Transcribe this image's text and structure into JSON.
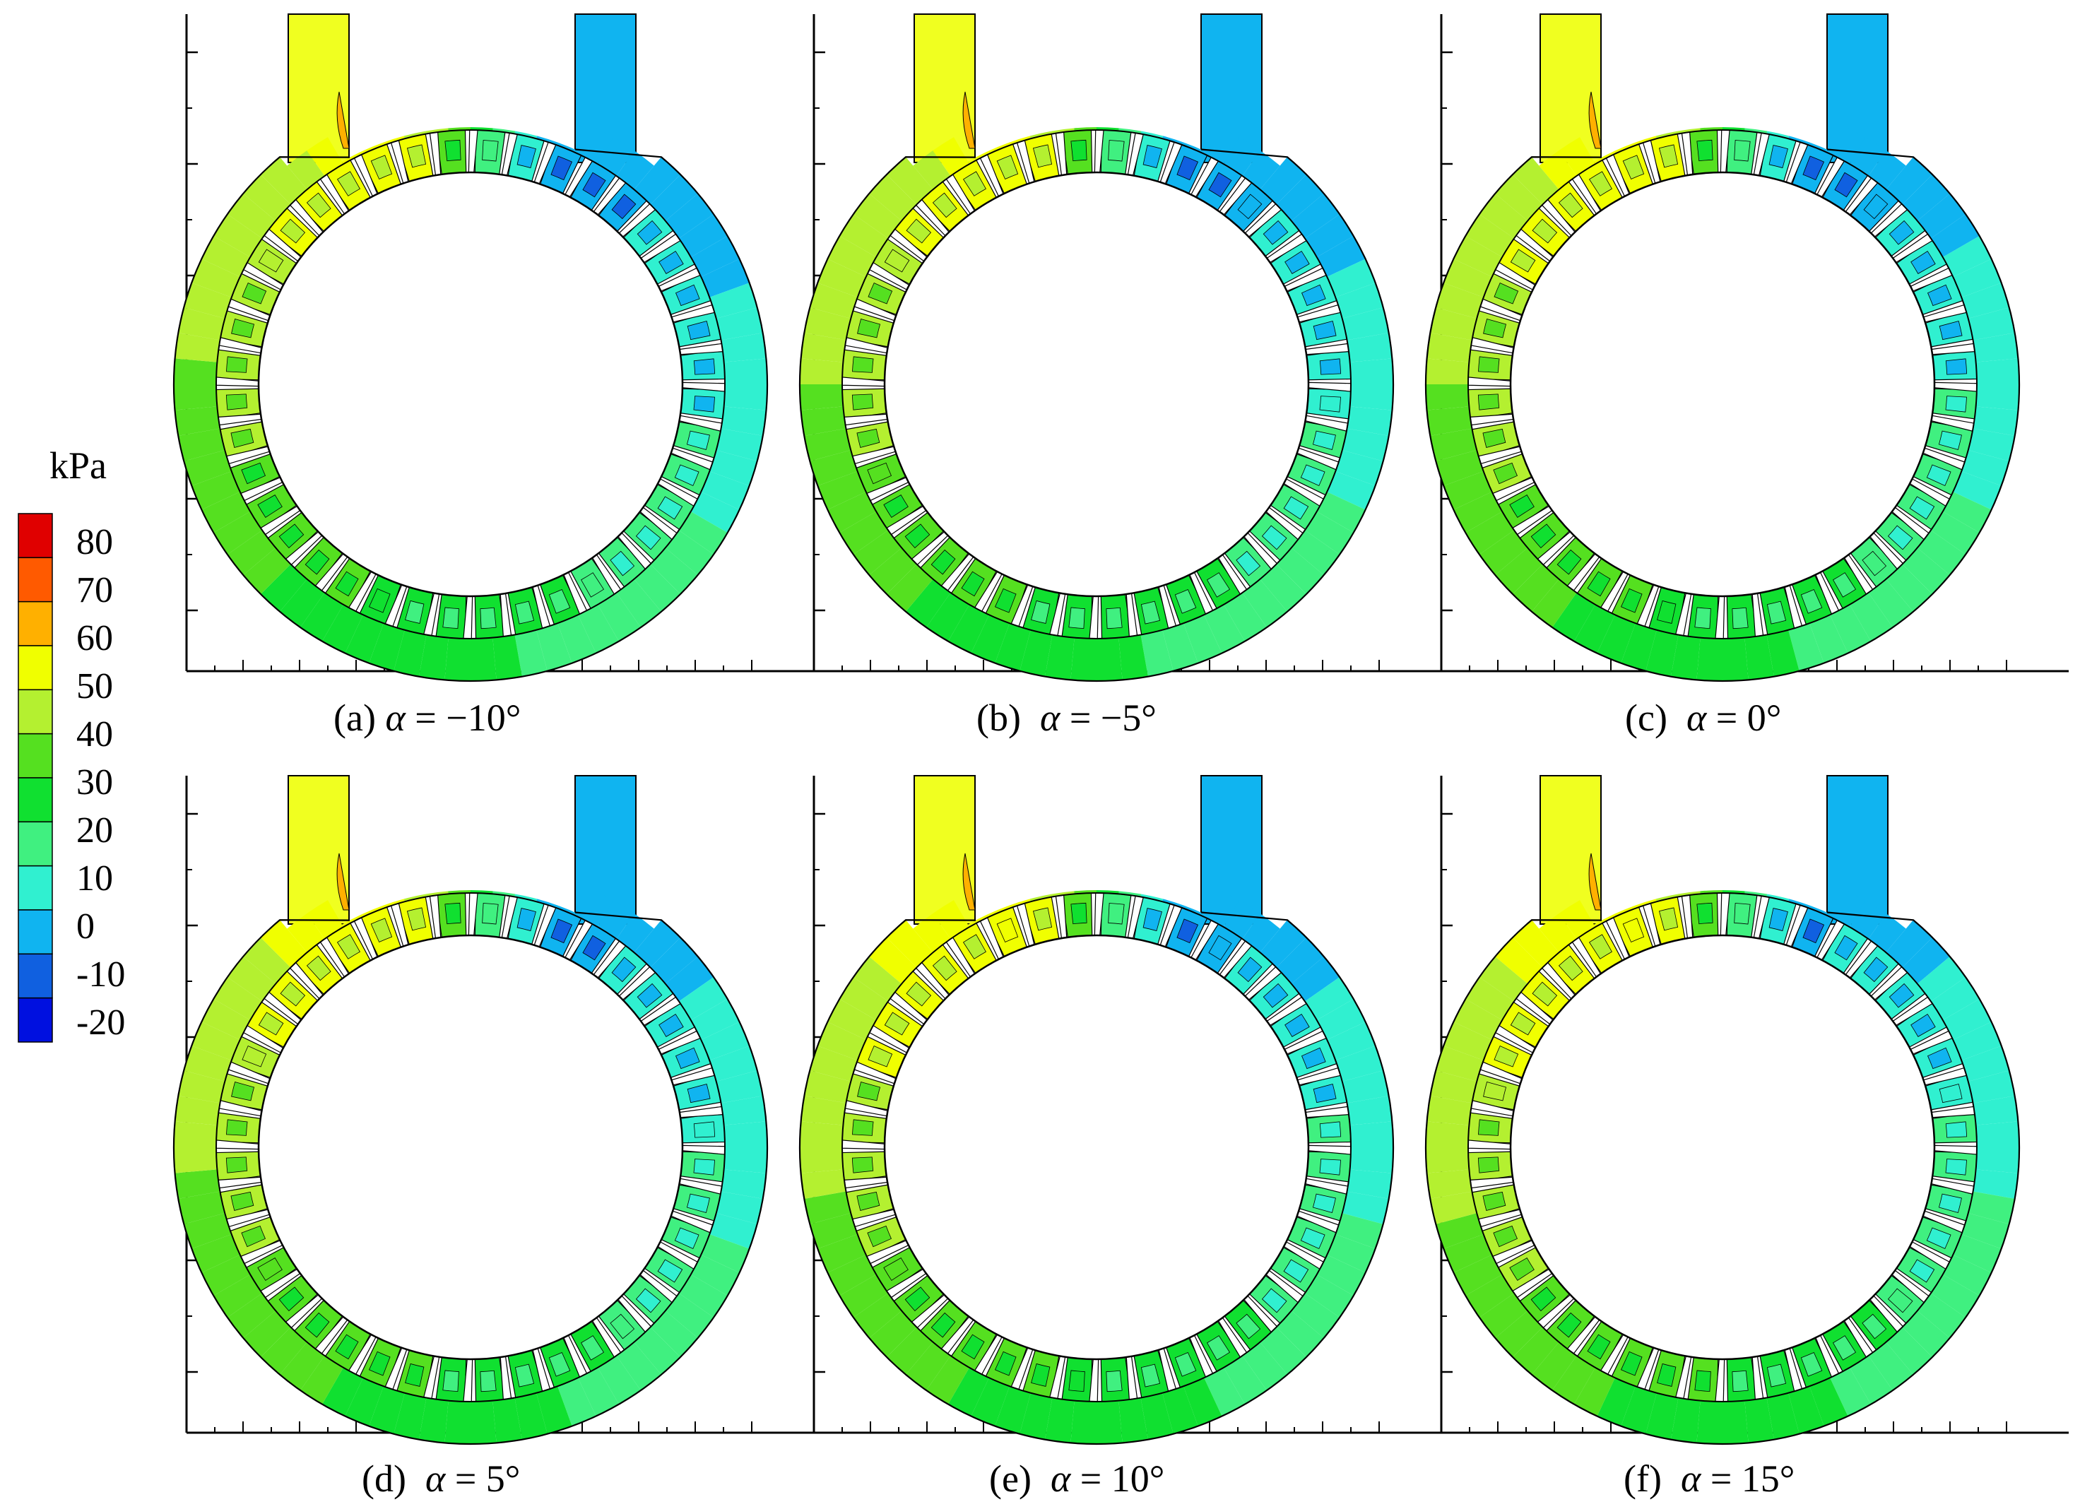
{
  "legend": {
    "unit": "kPa",
    "levels": [
      "80",
      "70",
      "60",
      "50",
      "40",
      "30",
      "20",
      "10",
      "0",
      "-10",
      "-20"
    ],
    "colors": [
      "#e00000",
      "#ff5a00",
      "#ffb000",
      "#f0ff00",
      "#b4f030",
      "#55e020",
      "#10e030",
      "#40f080",
      "#30f0d0",
      "#10b4f0",
      "#1060e0",
      "#0010e0"
    ]
  },
  "panels": [
    {
      "label": "(a)",
      "symbol": "α",
      "relation": "=",
      "value": "−10°",
      "deg": -10
    },
    {
      "label": "(b)",
      "symbol": "α",
      "relation": "=",
      "value": "−5°",
      "deg": -5
    },
    {
      "label": "(c)",
      "symbol": "α",
      "relation": "=",
      "value": "0°",
      "deg": 0
    },
    {
      "label": "(d)",
      "symbol": "α",
      "relation": "=",
      "value": "5°",
      "deg": 5
    },
    {
      "label": "(e)",
      "symbol": "α",
      "relation": "=",
      "value": "10°",
      "deg": 10
    },
    {
      "label": "(f)",
      "symbol": "α",
      "relation": "=",
      "value": "15°",
      "deg": 15
    }
  ],
  "colors": {
    "inlet": "#f0ff20",
    "outlet": "#10b4f0",
    "contour_line": "#000000"
  }
}
